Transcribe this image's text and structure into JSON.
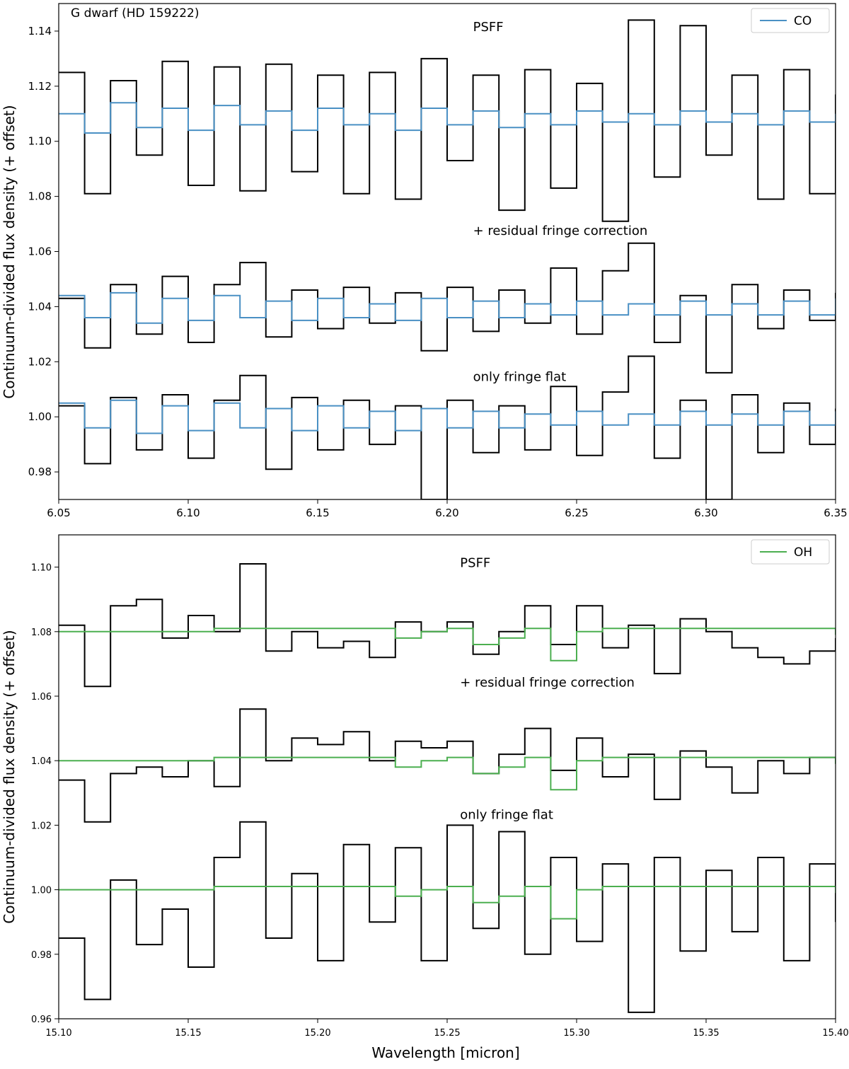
{
  "figure": {
    "xlabel": "Wavelength [micron]"
  },
  "chart_data": [
    {
      "type": "line",
      "step": true,
      "title": "G dwarf (HD 159222)",
      "ylabel": "Continuum-divided flux density (+ offset)",
      "xlim": [
        6.05,
        6.35
      ],
      "ylim": [
        0.97,
        1.15
      ],
      "xticks": [
        "6.05",
        "6.10",
        "6.15",
        "6.20",
        "6.25",
        "6.30",
        "6.35"
      ],
      "yticks": [
        "0.98",
        "1.00",
        "1.02",
        "1.04",
        "1.06",
        "1.08",
        "1.10",
        "1.12",
        "1.14"
      ],
      "legend": {
        "entries": [
          {
            "name": "CO",
            "color": "#4a90c4"
          }
        ],
        "placement": "upper right"
      },
      "annotations": [
        {
          "text": "PSFF",
          "x": 6.21,
          "y": 1.14
        },
        {
          "text": "+ residual fringe correction",
          "x": 6.21,
          "y": 1.066
        },
        {
          "text": "only fringe flat",
          "x": 6.21,
          "y": 1.013
        }
      ],
      "panels": [
        {
          "label": "PSFF",
          "offset": 1.11,
          "spectrum": {
            "name": "spectrum",
            "color": "#000000",
            "x": [
              6.05,
              6.06,
              6.07,
              6.08,
              6.09,
              6.1,
              6.11,
              6.12,
              6.13,
              6.14,
              6.15,
              6.16,
              6.17,
              6.18,
              6.19,
              6.2,
              6.21,
              6.22,
              6.23,
              6.24,
              6.25,
              6.26,
              6.27,
              6.28,
              6.29,
              6.3,
              6.31,
              6.32,
              6.33,
              6.34,
              6.35
            ],
            "y": [
              1.125,
              1.081,
              1.122,
              1.095,
              1.129,
              1.084,
              1.127,
              1.082,
              1.128,
              1.089,
              1.124,
              1.081,
              1.125,
              1.079,
              1.13,
              1.093,
              1.124,
              1.075,
              1.126,
              1.083,
              1.121,
              1.071,
              1.144,
              1.087,
              1.142,
              1.095,
              1.124,
              1.079,
              1.126,
              1.081,
              1.117
            ]
          },
          "model": {
            "name": "CO",
            "color": "#4a90c4",
            "x": [
              6.05,
              6.06,
              6.07,
              6.08,
              6.09,
              6.1,
              6.11,
              6.12,
              6.13,
              6.14,
              6.15,
              6.16,
              6.17,
              6.18,
              6.19,
              6.2,
              6.21,
              6.22,
              6.23,
              6.24,
              6.25,
              6.26,
              6.27,
              6.28,
              6.29,
              6.3,
              6.31,
              6.32,
              6.33,
              6.34,
              6.35
            ],
            "y": [
              1.11,
              1.103,
              1.114,
              1.105,
              1.112,
              1.104,
              1.113,
              1.106,
              1.111,
              1.104,
              1.112,
              1.106,
              1.11,
              1.104,
              1.112,
              1.106,
              1.111,
              1.105,
              1.11,
              1.106,
              1.111,
              1.107,
              1.11,
              1.106,
              1.111,
              1.107,
              1.11,
              1.106,
              1.111,
              1.107,
              1.11
            ]
          }
        },
        {
          "label": "+ residual fringe correction",
          "offset": 1.04,
          "spectrum": {
            "name": "spectrum",
            "color": "#000000",
            "x": [
              6.05,
              6.06,
              6.07,
              6.08,
              6.09,
              6.1,
              6.11,
              6.12,
              6.13,
              6.14,
              6.15,
              6.16,
              6.17,
              6.18,
              6.19,
              6.2,
              6.21,
              6.22,
              6.23,
              6.24,
              6.25,
              6.26,
              6.27,
              6.28,
              6.29,
              6.3,
              6.31,
              6.32,
              6.33,
              6.34,
              6.35
            ],
            "y": [
              1.043,
              1.025,
              1.048,
              1.03,
              1.051,
              1.027,
              1.048,
              1.056,
              1.029,
              1.046,
              1.032,
              1.047,
              1.034,
              1.045,
              1.024,
              1.047,
              1.031,
              1.046,
              1.034,
              1.054,
              1.03,
              1.053,
              1.063,
              1.027,
              1.044,
              1.016,
              1.048,
              1.032,
              1.046,
              1.035,
              1.045
            ]
          },
          "model": {
            "name": "CO",
            "color": "#4a90c4",
            "x": [
              6.05,
              6.06,
              6.07,
              6.08,
              6.09,
              6.1,
              6.11,
              6.12,
              6.13,
              6.14,
              6.15,
              6.16,
              6.17,
              6.18,
              6.19,
              6.2,
              6.21,
              6.22,
              6.23,
              6.24,
              6.25,
              6.26,
              6.27,
              6.28,
              6.29,
              6.3,
              6.31,
              6.32,
              6.33,
              6.34,
              6.35
            ],
            "y": [
              1.044,
              1.036,
              1.045,
              1.034,
              1.043,
              1.035,
              1.044,
              1.036,
              1.042,
              1.035,
              1.043,
              1.036,
              1.041,
              1.035,
              1.043,
              1.036,
              1.042,
              1.036,
              1.041,
              1.037,
              1.042,
              1.037,
              1.041,
              1.037,
              1.042,
              1.037,
              1.041,
              1.037,
              1.042,
              1.037,
              1.043
            ]
          }
        },
        {
          "label": "only fringe flat",
          "offset": 1.0,
          "spectrum": {
            "name": "spectrum",
            "color": "#000000",
            "x": [
              6.05,
              6.06,
              6.07,
              6.08,
              6.09,
              6.1,
              6.11,
              6.12,
              6.13,
              6.14,
              6.15,
              6.16,
              6.17,
              6.18,
              6.19,
              6.2,
              6.21,
              6.22,
              6.23,
              6.24,
              6.25,
              6.26,
              6.27,
              6.28,
              6.29,
              6.3,
              6.31,
              6.32,
              6.33,
              6.34,
              6.35
            ],
            "y": [
              1.004,
              0.983,
              1.007,
              0.988,
              1.008,
              0.985,
              1.006,
              1.015,
              0.981,
              1.007,
              0.988,
              1.006,
              0.99,
              1.004,
              0.97,
              1.006,
              0.987,
              1.004,
              0.988,
              1.011,
              0.986,
              1.009,
              1.022,
              0.985,
              1.006,
              0.97,
              1.008,
              0.987,
              1.005,
              0.99,
              1.003
            ]
          },
          "model": {
            "name": "CO",
            "color": "#4a90c4",
            "x": [
              6.05,
              6.06,
              6.07,
              6.08,
              6.09,
              6.1,
              6.11,
              6.12,
              6.13,
              6.14,
              6.15,
              6.16,
              6.17,
              6.18,
              6.19,
              6.2,
              6.21,
              6.22,
              6.23,
              6.24,
              6.25,
              6.26,
              6.27,
              6.28,
              6.29,
              6.3,
              6.31,
              6.32,
              6.33,
              6.34,
              6.35
            ],
            "y": [
              1.005,
              0.996,
              1.006,
              0.994,
              1.004,
              0.995,
              1.005,
              0.996,
              1.003,
              0.995,
              1.004,
              0.996,
              1.002,
              0.995,
              1.003,
              0.996,
              1.002,
              0.996,
              1.001,
              0.997,
              1.002,
              0.997,
              1.001,
              0.997,
              1.002,
              0.997,
              1.001,
              0.997,
              1.002,
              0.997,
              1.002
            ]
          }
        }
      ]
    },
    {
      "type": "line",
      "step": true,
      "ylabel": "Continuum-divided flux density (+ offset)",
      "xlim": [
        15.1,
        15.4
      ],
      "ylim": [
        0.96,
        1.11
      ],
      "xticks": [
        "15.10",
        "15.15",
        "15.20",
        "15.25",
        "15.30",
        "15.35",
        "15.40"
      ],
      "yticks": [
        "0.96",
        "0.98",
        "1.00",
        "1.02",
        "1.04",
        "1.06",
        "1.08",
        "1.10"
      ],
      "legend": {
        "entries": [
          {
            "name": "OH",
            "color": "#4caf50"
          }
        ],
        "placement": "upper right"
      },
      "annotations": [
        {
          "text": "PSFF",
          "x": 15.255,
          "y": 1.1
        },
        {
          "text": "+ residual fringe correction",
          "x": 15.255,
          "y": 1.063
        },
        {
          "text": "only fringe flat",
          "x": 15.255,
          "y": 1.022
        }
      ],
      "panels": [
        {
          "label": "PSFF",
          "offset": 1.08,
          "spectrum": {
            "name": "spectrum",
            "color": "#000000",
            "x": [
              15.1,
              15.11,
              15.12,
              15.13,
              15.14,
              15.15,
              15.16,
              15.17,
              15.18,
              15.19,
              15.2,
              15.21,
              15.22,
              15.23,
              15.24,
              15.25,
              15.26,
              15.27,
              15.28,
              15.29,
              15.3,
              15.31,
              15.32,
              15.33,
              15.34,
              15.35,
              15.36,
              15.37,
              15.38,
              15.39,
              15.4
            ],
            "y": [
              1.082,
              1.063,
              1.088,
              1.09,
              1.078,
              1.085,
              1.08,
              1.101,
              1.074,
              1.08,
              1.075,
              1.077,
              1.072,
              1.083,
              1.08,
              1.083,
              1.073,
              1.08,
              1.088,
              1.076,
              1.088,
              1.075,
              1.082,
              1.067,
              1.084,
              1.08,
              1.075,
              1.072,
              1.07,
              1.074,
              1.078
            ]
          },
          "model": {
            "name": "OH",
            "color": "#4caf50",
            "x": [
              15.1,
              15.12,
              15.14,
              15.16,
              15.18,
              15.2,
              15.22,
              15.23,
              15.24,
              15.25,
              15.26,
              15.27,
              15.28,
              15.29,
              15.3,
              15.31,
              15.32,
              15.34,
              15.36,
              15.38,
              15.4
            ],
            "y": [
              1.08,
              1.08,
              1.08,
              1.081,
              1.081,
              1.081,
              1.081,
              1.078,
              1.08,
              1.081,
              1.076,
              1.078,
              1.081,
              1.071,
              1.08,
              1.081,
              1.081,
              1.081,
              1.081,
              1.081,
              1.079
            ]
          }
        },
        {
          "label": "+ residual fringe correction",
          "offset": 1.04,
          "spectrum": {
            "name": "spectrum",
            "color": "#000000",
            "x": [
              15.1,
              15.11,
              15.12,
              15.13,
              15.14,
              15.15,
              15.16,
              15.17,
              15.18,
              15.19,
              15.2,
              15.21,
              15.22,
              15.23,
              15.24,
              15.25,
              15.26,
              15.27,
              15.28,
              15.29,
              15.3,
              15.31,
              15.32,
              15.33,
              15.34,
              15.35,
              15.36,
              15.37,
              15.38,
              15.39,
              15.4
            ],
            "y": [
              1.034,
              1.021,
              1.036,
              1.038,
              1.035,
              1.04,
              1.032,
              1.056,
              1.04,
              1.047,
              1.045,
              1.049,
              1.04,
              1.046,
              1.044,
              1.046,
              1.036,
              1.042,
              1.05,
              1.037,
              1.047,
              1.035,
              1.042,
              1.028,
              1.043,
              1.038,
              1.03,
              1.04,
              1.036,
              1.041,
              1.04
            ]
          },
          "model": {
            "name": "OH",
            "color": "#4caf50",
            "x": [
              15.1,
              15.12,
              15.14,
              15.16,
              15.18,
              15.2,
              15.22,
              15.23,
              15.24,
              15.25,
              15.26,
              15.27,
              15.28,
              15.29,
              15.3,
              15.31,
              15.32,
              15.34,
              15.36,
              15.38,
              15.4
            ],
            "y": [
              1.04,
              1.04,
              1.04,
              1.041,
              1.041,
              1.041,
              1.041,
              1.038,
              1.04,
              1.041,
              1.036,
              1.038,
              1.041,
              1.031,
              1.04,
              1.041,
              1.041,
              1.041,
              1.041,
              1.041,
              1.039
            ]
          }
        },
        {
          "label": "only fringe flat",
          "offset": 1.0,
          "spectrum": {
            "name": "spectrum",
            "color": "#000000",
            "x": [
              15.1,
              15.11,
              15.12,
              15.13,
              15.14,
              15.15,
              15.16,
              15.17,
              15.18,
              15.19,
              15.2,
              15.21,
              15.22,
              15.23,
              15.24,
              15.25,
              15.26,
              15.27,
              15.28,
              15.29,
              15.3,
              15.31,
              15.32,
              15.33,
              15.34,
              15.35,
              15.36,
              15.37,
              15.38,
              15.39,
              15.4
            ],
            "y": [
              0.985,
              0.966,
              1.003,
              0.983,
              0.994,
              0.976,
              1.01,
              1.021,
              0.985,
              1.005,
              0.978,
              1.014,
              0.99,
              1.013,
              0.978,
              1.02,
              0.988,
              1.018,
              0.98,
              1.01,
              0.984,
              1.008,
              0.962,
              1.01,
              0.981,
              1.006,
              0.987,
              1.01,
              0.978,
              1.008,
              0.99
            ]
          },
          "model": {
            "name": "OH",
            "color": "#4caf50",
            "x": [
              15.1,
              15.12,
              15.14,
              15.16,
              15.18,
              15.2,
              15.22,
              15.23,
              15.24,
              15.25,
              15.26,
              15.27,
              15.28,
              15.29,
              15.3,
              15.31,
              15.32,
              15.34,
              15.36,
              15.38,
              15.4
            ],
            "y": [
              1.0,
              1.0,
              1.0,
              1.001,
              1.001,
              1.001,
              1.001,
              0.998,
              1.0,
              1.001,
              0.996,
              0.998,
              1.001,
              0.991,
              1.0,
              1.001,
              1.001,
              1.001,
              1.001,
              1.001,
              0.999
            ]
          }
        }
      ]
    }
  ]
}
